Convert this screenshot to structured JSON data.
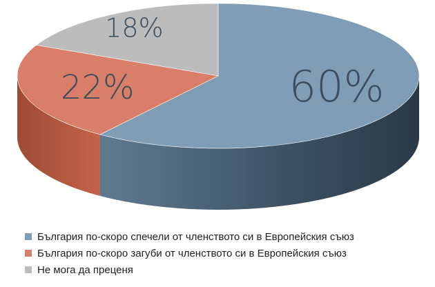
{
  "chart_data": {
    "type": "pie",
    "style": "3d",
    "categories": [
      "България по-скоро спечели от членството си в Европейския съюз",
      "България по-скоро загуби от членството си в Европейския съюз",
      "Не мога да преценя"
    ],
    "values": [
      60,
      22,
      18
    ],
    "data_labels": [
      "60%",
      "22%",
      "18%"
    ],
    "colors": [
      "#7f9db4",
      "#d97f69",
      "#bcbcbc"
    ],
    "legend_position": "bottom"
  }
}
